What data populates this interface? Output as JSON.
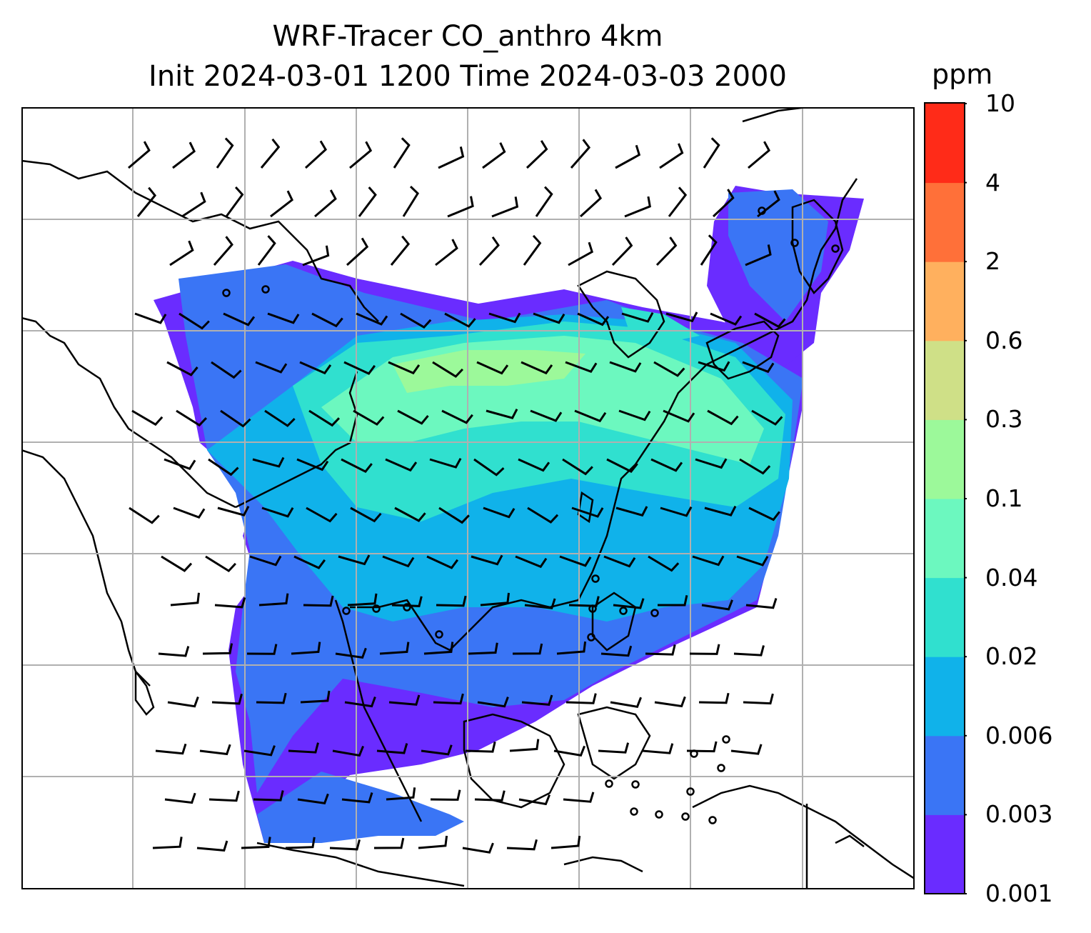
{
  "title": {
    "line1": "WRF-Tracer CO_anthro 4km",
    "line2": "Init 2024-03-01 1200 Time 2024-03-03 2000"
  },
  "colorbar": {
    "unit": "ppm",
    "tick_labels": [
      "0.001",
      "0.003",
      "0.006",
      "0.02",
      "0.04",
      "0.1",
      "0.3",
      "0.6",
      "2",
      "4",
      "10"
    ],
    "colors": [
      "#6a2cff",
      "#3a75f5",
      "#10b2ea",
      "#30e0cf",
      "#6cf8bf",
      "#9cf99a",
      "#cfe087",
      "#ffb05e",
      "#ff7039",
      "#ff2b18"
    ]
  },
  "map": {
    "variable": "CO_anthro",
    "gridlines": true,
    "features": [
      "coastlines",
      "country-borders",
      "wind-barbs",
      "tracer-shading"
    ]
  }
}
